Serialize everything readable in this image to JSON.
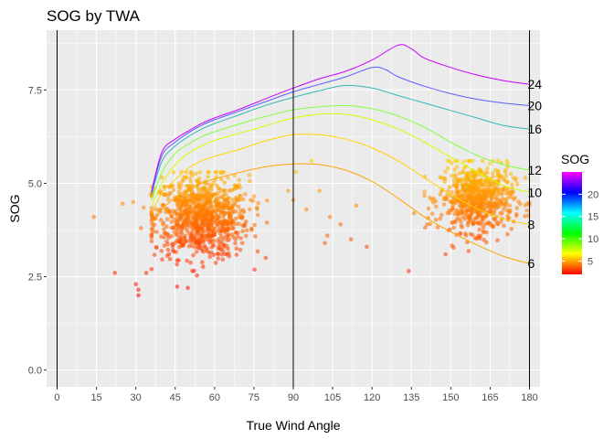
{
  "chart_data": {
    "type": "scatter",
    "title": "SOG by TWA",
    "xlabel": "True Wind Angle",
    "ylabel": "SOG",
    "xlim": [
      -4,
      184
    ],
    "ylim": [
      -0.45,
      9.1
    ],
    "x_ticks": [
      0,
      15,
      30,
      45,
      60,
      75,
      90,
      105,
      120,
      135,
      150,
      165,
      180
    ],
    "y_ticks": [
      0.0,
      2.5,
      5.0,
      7.5
    ],
    "y_tick_labels": [
      "0.0",
      "2.5",
      "5.0",
      "7.5"
    ],
    "vlines": [
      0,
      90,
      180
    ],
    "grid": true,
    "colorbar": {
      "title": "SOG",
      "min": 2,
      "max": 25,
      "ticks": [
        5,
        10,
        15,
        20
      ],
      "tick_labels": [
        "5",
        "10",
        "15",
        "20"
      ],
      "colors": [
        "#ff0000",
        "#ffff00",
        "#00ff00",
        "#00ffff",
        "#0000ff",
        "#ff00ff"
      ],
      "placement": "right"
    },
    "polar_curves": [
      {
        "name": "6",
        "color": "#ffa500",
        "points": [
          [
            36,
            3.9
          ],
          [
            40,
            4.3
          ],
          [
            45,
            4.62
          ],
          [
            50,
            4.85
          ],
          [
            55,
            5.0
          ],
          [
            60,
            5.12
          ],
          [
            70,
            5.3
          ],
          [
            80,
            5.45
          ],
          [
            90,
            5.52
          ],
          [
            100,
            5.5
          ],
          [
            110,
            5.35
          ],
          [
            120,
            5.05
          ],
          [
            130,
            4.6
          ],
          [
            140,
            4.1
          ],
          [
            150,
            3.7
          ],
          [
            160,
            3.35
          ],
          [
            170,
            3.05
          ],
          [
            180,
            2.85
          ]
        ]
      },
      {
        "name": "8",
        "color": "#ffd500",
        "points": [
          [
            36,
            4.2
          ],
          [
            40,
            4.75
          ],
          [
            45,
            5.1
          ],
          [
            50,
            5.4
          ],
          [
            55,
            5.6
          ],
          [
            60,
            5.72
          ],
          [
            70,
            5.92
          ],
          [
            80,
            6.15
          ],
          [
            90,
            6.3
          ],
          [
            100,
            6.3
          ],
          [
            110,
            6.18
          ],
          [
            120,
            5.95
          ],
          [
            130,
            5.6
          ],
          [
            140,
            5.15
          ],
          [
            150,
            4.7
          ],
          [
            160,
            4.32
          ],
          [
            170,
            4.05
          ],
          [
            180,
            3.9
          ]
        ]
      },
      {
        "name": "10",
        "color": "#d5ff00",
        "points": [
          [
            36,
            4.4
          ],
          [
            40,
            5.0
          ],
          [
            45,
            5.5
          ],
          [
            50,
            5.8
          ],
          [
            55,
            6.0
          ],
          [
            60,
            6.15
          ],
          [
            70,
            6.35
          ],
          [
            80,
            6.55
          ],
          [
            90,
            6.75
          ],
          [
            100,
            6.85
          ],
          [
            110,
            6.85
          ],
          [
            120,
            6.7
          ],
          [
            130,
            6.45
          ],
          [
            140,
            6.1
          ],
          [
            150,
            5.7
          ],
          [
            160,
            5.3
          ],
          [
            170,
            4.95
          ],
          [
            180,
            4.75
          ]
        ]
      },
      {
        "name": "12",
        "color": "#80ff40",
        "points": [
          [
            36,
            4.55
          ],
          [
            40,
            5.3
          ],
          [
            45,
            5.8
          ],
          [
            50,
            6.05
          ],
          [
            55,
            6.25
          ],
          [
            60,
            6.38
          ],
          [
            70,
            6.6
          ],
          [
            80,
            6.8
          ],
          [
            90,
            6.97
          ],
          [
            100,
            7.05
          ],
          [
            110,
            7.08
          ],
          [
            120,
            7.0
          ],
          [
            130,
            6.8
          ],
          [
            140,
            6.5
          ],
          [
            150,
            6.1
          ],
          [
            160,
            5.75
          ],
          [
            170,
            5.5
          ],
          [
            180,
            5.35
          ]
        ]
      },
      {
        "name": "16",
        "color": "#33b8b8",
        "points": [
          [
            36,
            4.7
          ],
          [
            40,
            5.6
          ],
          [
            45,
            6.0
          ],
          [
            50,
            6.25
          ],
          [
            55,
            6.45
          ],
          [
            60,
            6.6
          ],
          [
            70,
            6.85
          ],
          [
            80,
            7.1
          ],
          [
            90,
            7.3
          ],
          [
            100,
            7.48
          ],
          [
            110,
            7.62
          ],
          [
            120,
            7.55
          ],
          [
            130,
            7.35
          ],
          [
            140,
            7.15
          ],
          [
            150,
            6.95
          ],
          [
            160,
            6.75
          ],
          [
            170,
            6.55
          ],
          [
            180,
            6.45
          ]
        ]
      },
      {
        "name": "20",
        "color": "#5c5cff",
        "points": [
          [
            36,
            4.75
          ],
          [
            40,
            5.75
          ],
          [
            45,
            6.1
          ],
          [
            50,
            6.35
          ],
          [
            55,
            6.55
          ],
          [
            60,
            6.7
          ],
          [
            70,
            6.95
          ],
          [
            80,
            7.2
          ],
          [
            90,
            7.45
          ],
          [
            100,
            7.65
          ],
          [
            110,
            7.85
          ],
          [
            120,
            8.1
          ],
          [
            125,
            8.05
          ],
          [
            130,
            7.85
          ],
          [
            140,
            7.6
          ],
          [
            150,
            7.4
          ],
          [
            160,
            7.25
          ],
          [
            170,
            7.15
          ],
          [
            180,
            7.08
          ]
        ]
      },
      {
        "name": "24",
        "color": "#c800ff",
        "points": [
          [
            36,
            4.8
          ],
          [
            40,
            5.85
          ],
          [
            45,
            6.18
          ],
          [
            50,
            6.4
          ],
          [
            55,
            6.6
          ],
          [
            60,
            6.75
          ],
          [
            70,
            7.0
          ],
          [
            80,
            7.28
          ],
          [
            90,
            7.55
          ],
          [
            100,
            7.8
          ],
          [
            110,
            8.0
          ],
          [
            120,
            8.3
          ],
          [
            130,
            8.7
          ],
          [
            135,
            8.6
          ],
          [
            140,
            8.35
          ],
          [
            150,
            8.1
          ],
          [
            160,
            7.9
          ],
          [
            170,
            7.75
          ],
          [
            180,
            7.65
          ]
        ]
      }
    ],
    "point_clusters": [
      {
        "x_center": 55,
        "x_spread": 9,
        "x_range": [
          36,
          80
        ],
        "y_center": 4.1,
        "y_spread": 0.55,
        "y_range": [
          2.2,
          5.3
        ],
        "count": 900
      },
      {
        "x_center": 160,
        "x_spread": 7,
        "x_range": [
          140,
          180
        ],
        "y_center": 4.6,
        "y_spread": 0.45,
        "y_range": [
          2.6,
          5.6
        ],
        "count": 650
      }
    ],
    "outlier_points": [
      {
        "x": 14,
        "y": 4.1
      },
      {
        "x": 22,
        "y": 2.6
      },
      {
        "x": 25,
        "y": 4.45
      },
      {
        "x": 29,
        "y": 4.5
      },
      {
        "x": 30,
        "y": 2.3
      },
      {
        "x": 31,
        "y": 2.15
      },
      {
        "x": 31,
        "y": 2.0
      },
      {
        "x": 32,
        "y": 3.8
      },
      {
        "x": 33,
        "y": 4.35
      },
      {
        "x": 34,
        "y": 2.6
      },
      {
        "x": 88,
        "y": 4.8
      },
      {
        "x": 90,
        "y": 4.55
      },
      {
        "x": 91,
        "y": 5.3
      },
      {
        "x": 95,
        "y": 4.3
      },
      {
        "x": 97,
        "y": 5.6
      },
      {
        "x": 100,
        "y": 4.8
      },
      {
        "x": 102,
        "y": 3.4
      },
      {
        "x": 103,
        "y": 3.6
      },
      {
        "x": 104,
        "y": 4.1
      },
      {
        "x": 108,
        "y": 3.9
      },
      {
        "x": 112,
        "y": 3.5
      },
      {
        "x": 114,
        "y": 4.4
      },
      {
        "x": 118,
        "y": 3.3
      },
      {
        "x": 134,
        "y": 2.65
      },
      {
        "x": 136,
        "y": 4.2
      },
      {
        "x": 141,
        "y": 3.9
      },
      {
        "x": 146,
        "y": 4.7
      },
      {
        "x": 148,
        "y": 3.1
      }
    ]
  }
}
